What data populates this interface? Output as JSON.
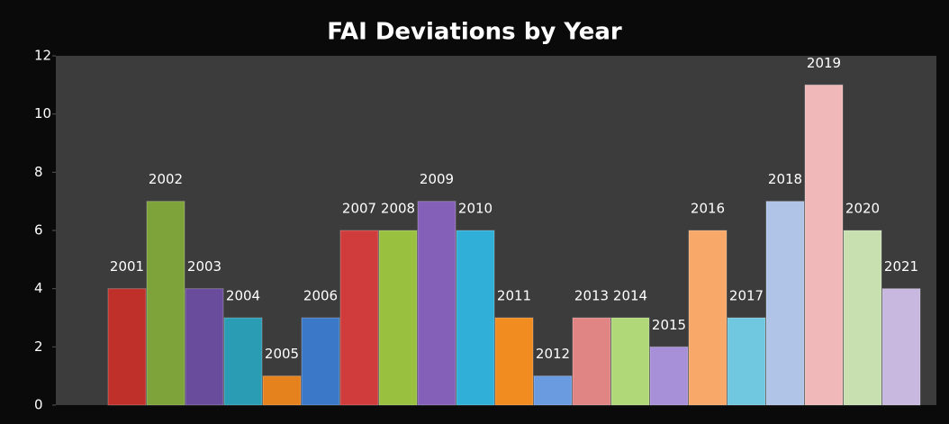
{
  "chart_data": {
    "type": "bar",
    "title": "FAI Deviations by Year",
    "categories": [
      "2001",
      "2002",
      "2003",
      "2004",
      "2005",
      "2006",
      "2007",
      "2008",
      "2009",
      "2010",
      "2011",
      "2012",
      "2013",
      "2014",
      "2015",
      "2016",
      "2017",
      "2018",
      "2019",
      "2020",
      "2021"
    ],
    "values": [
      4,
      7,
      4,
      3,
      1,
      3,
      6,
      6,
      7,
      6,
      3,
      1,
      3,
      3,
      2,
      6,
      3,
      7,
      11,
      6,
      4
    ],
    "colors": [
      "#c0302a",
      "#7ea33a",
      "#6a4c9c",
      "#2a9cb4",
      "#e6821e",
      "#3b78c8",
      "#d03c3c",
      "#9ac040",
      "#8460b8",
      "#30b0d8",
      "#f08c20",
      "#6a9ae0",
      "#e08484",
      "#b0d878",
      "#a890d8",
      "#f8a868",
      "#70c8e0",
      "#b0c4e8",
      "#f0b8b8",
      "#c8e0b0",
      "#c8b8e0"
    ],
    "ylim": [
      0,
      12
    ],
    "yticks": [
      0,
      2,
      4,
      6,
      8,
      10,
      12
    ]
  }
}
